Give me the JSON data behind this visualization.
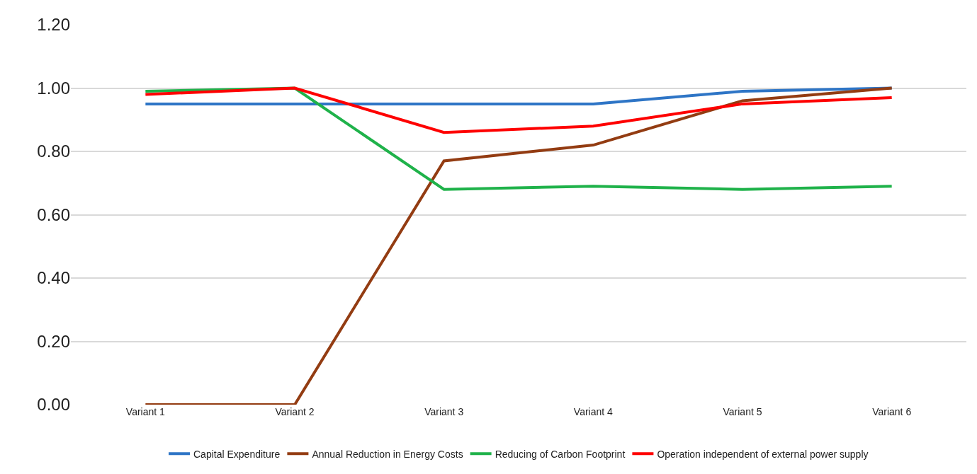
{
  "chart_data": {
    "type": "line",
    "categories": [
      "Variant 1",
      "Variant 2",
      "Variant 3",
      "Variant 4",
      "Variant 5",
      "Variant 6"
    ],
    "series": [
      {
        "name": "Capital Expenditure",
        "color": "#2e75c6",
        "values": [
          0.95,
          0.95,
          0.95,
          0.95,
          0.99,
          1.0
        ]
      },
      {
        "name": "Annual Reduction in Energy Costs",
        "color": "#933c12",
        "values": [
          0,
          0,
          0.77,
          0.82,
          0.96,
          1.0
        ]
      },
      {
        "name": "Reducing of Carbon Footprint",
        "color": "#1fb24a",
        "values": [
          0.99,
          1.0,
          0.68,
          0.69,
          0.68,
          0.69
        ]
      },
      {
        "name": "Operation independent of external power supply",
        "color": "#fe0000",
        "values": [
          0.98,
          1.0,
          0.86,
          0.88,
          0.95,
          0.97
        ]
      }
    ],
    "ylim": [
      0,
      1.2
    ],
    "yticks": [
      {
        "value": 0,
        "label": "0.00"
      },
      {
        "value": 0.2,
        "label": "0.20"
      },
      {
        "value": 0.4,
        "label": "0.40"
      },
      {
        "value": 0.6,
        "label": "0.60"
      },
      {
        "value": 0.8,
        "label": "0.80"
      },
      {
        "value": 1,
        "label": "1.00"
      },
      {
        "value": 1.2,
        "label": "1.20"
      }
    ],
    "grid": "y",
    "legend": "bottom",
    "marker": "none",
    "line_style": "solid"
  }
}
